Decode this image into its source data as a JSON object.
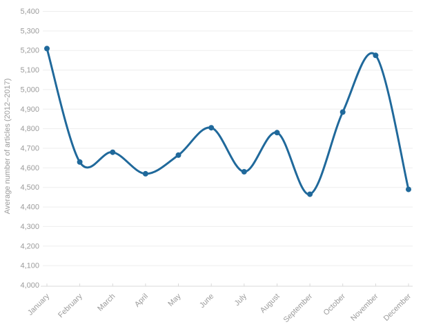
{
  "chart_data": {
    "type": "line",
    "title": "",
    "xlabel": "",
    "ylabel": "Average number of articles (2012–2017)",
    "categories": [
      "January",
      "February",
      "March",
      "April",
      "May",
      "June",
      "July",
      "August",
      "September",
      "October",
      "November",
      "December"
    ],
    "series": [
      {
        "name": "Average number of articles",
        "values": [
          5210,
          4630,
          4680,
          4570,
          4665,
          4805,
          4580,
          4780,
          4465,
          4885,
          5175,
          4490
        ]
      }
    ],
    "ylim": [
      4000,
      5400
    ],
    "ytick_step": 100,
    "yticks": [
      {
        "value": 5400,
        "label": "5,400"
      },
      {
        "value": 5300,
        "label": "5,300"
      },
      {
        "value": 5200,
        "label": "5,200"
      },
      {
        "value": 5100,
        "label": "5,100"
      },
      {
        "value": 5000,
        "label": "5,000"
      },
      {
        "value": 4900,
        "label": "4,900"
      },
      {
        "value": 4800,
        "label": "4,800"
      },
      {
        "value": 4700,
        "label": "4,700"
      },
      {
        "value": 4600,
        "label": "4,600"
      },
      {
        "value": 4500,
        "label": "4,500"
      },
      {
        "value": 4400,
        "label": "4,400"
      },
      {
        "value": 4300,
        "label": "4,300"
      },
      {
        "value": 4200,
        "label": "4,200"
      },
      {
        "value": 4100,
        "label": "4,100"
      },
      {
        "value": 4000,
        "label": "4,000"
      }
    ],
    "grid": true,
    "legend": false,
    "line_style": "smooth",
    "marker": "circle",
    "colors": {
      "line": "#20699b",
      "marker": "#20699b",
      "grid": "#ededed",
      "axis": "#d9d9d9",
      "tick_label": "#9b9b9b",
      "axis_title": "#9b9b9b",
      "background": "#ffffff"
    }
  }
}
